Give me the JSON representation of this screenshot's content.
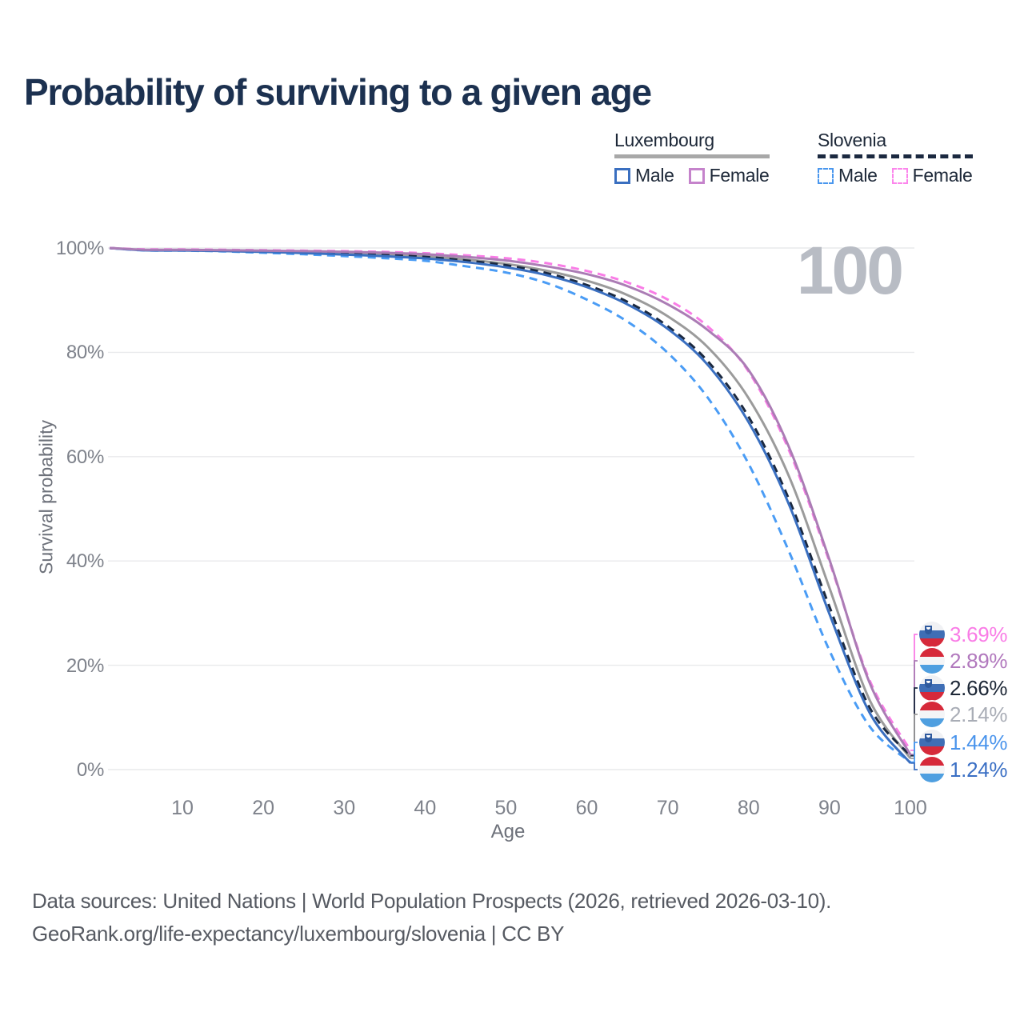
{
  "title": "Probability of surviving to a given age",
  "watermark": "100",
  "legend": {
    "groups": [
      {
        "label": "Luxembourg",
        "rule_style": "solid",
        "rule_color": "#a8a8a8",
        "items": [
          {
            "label": "Male",
            "color": "#3a6fc0",
            "dashed": false
          },
          {
            "label": "Female",
            "color": "#c583cb",
            "dashed": false
          }
        ]
      },
      {
        "label": "Slovenia",
        "rule_style": "dashed",
        "rule_color": "#1b2940",
        "items": [
          {
            "label": "Male",
            "color": "#4a97ee",
            "dashed": true
          },
          {
            "label": "Female",
            "color": "#fc86ec",
            "dashed": true
          }
        ]
      }
    ]
  },
  "axes": {
    "y_label": "Survival probability",
    "y_ticks": [
      {
        "label": "100%",
        "value": 100
      },
      {
        "label": "80%",
        "value": 80
      },
      {
        "label": "60%",
        "value": 60
      },
      {
        "label": "40%",
        "value": 40
      },
      {
        "label": "20%",
        "value": 20
      },
      {
        "label": "0%",
        "value": 0
      }
    ],
    "x_label": "Age",
    "x_ticks": [
      10,
      20,
      30,
      40,
      50,
      60,
      70,
      80,
      90,
      100
    ]
  },
  "flags": {
    "si": {
      "stripes": [
        "#f0f1f4",
        "#3f6eb5",
        "#d6293a"
      ],
      "emblem": "#2f5a9e"
    },
    "lu": {
      "stripes": [
        "#d6293a",
        "#f4f5f7",
        "#4f9fe0"
      ],
      "emblem": null
    }
  },
  "end_labels": [
    {
      "value": "3.69%",
      "country": "Slovenia",
      "flag": "si",
      "color": "#f97ce6"
    },
    {
      "value": "2.89%",
      "country": "Luxembourg",
      "flag": "lu",
      "color": "#b178bd"
    },
    {
      "value": "2.66%",
      "country": "Slovenia",
      "flag": "si",
      "color": "#1d2736"
    },
    {
      "value": "2.14%",
      "country": "Luxembourg",
      "flag": "lu",
      "color": "#a9adb6"
    },
    {
      "value": "1.44%",
      "country": "Slovenia",
      "flag": "si",
      "color": "#4a94ec"
    },
    {
      "value": "1.24%",
      "country": "Luxembourg",
      "flag": "lu",
      "color": "#3a6fc4"
    }
  ],
  "footer": {
    "line1": "Data sources: United Nations | World Population Prospects (2026, retrieved 2026-03-10).",
    "line2": "GeoRank.org/life-expectancy/luxembourg/slovenia | CC BY"
  },
  "chart_data": {
    "type": "line",
    "title": "Probability of surviving to a given age",
    "xlabel": "Age",
    "ylabel": "Survival probability",
    "x_range": [
      1,
      100
    ],
    "y_range_percent": [
      0,
      100
    ],
    "grid": "horizontal",
    "legend_position": "top-right",
    "x": [
      1,
      5,
      10,
      15,
      20,
      25,
      30,
      35,
      40,
      45,
      50,
      55,
      60,
      65,
      70,
      75,
      80,
      85,
      90,
      95,
      100
    ],
    "series": [
      {
        "id": "si_female",
        "name": "Slovenia Female",
        "country": "Slovenia",
        "sex": "Female",
        "color": "#f97ce6",
        "dashed": true,
        "end_value_percent": 3.69,
        "values": [
          100,
          99.75,
          99.72,
          99.66,
          99.58,
          99.5,
          99.4,
          99.25,
          99.0,
          98.6,
          98.05,
          97.1,
          95.6,
          93.4,
          90.1,
          84.9,
          76.3,
          61.2,
          39.8,
          17.0,
          3.69
        ]
      },
      {
        "id": "lu_female",
        "name": "Luxembourg Female",
        "country": "Luxembourg",
        "sex": "Female",
        "color": "#ab7cb5",
        "dashed": false,
        "end_value_percent": 2.89,
        "values": [
          100,
          99.68,
          99.64,
          99.58,
          99.5,
          99.4,
          99.28,
          99.1,
          98.8,
          98.3,
          97.6,
          96.5,
          95.0,
          92.7,
          89.2,
          84.2,
          76.6,
          61.8,
          40.2,
          16.5,
          2.89
        ]
      },
      {
        "id": "si_total",
        "name": "Slovenia",
        "country": "Slovenia",
        "sex": "Both",
        "color": "#1b2940",
        "dashed": true,
        "end_value_percent": 2.66,
        "values": [
          100,
          99.65,
          99.6,
          99.5,
          99.38,
          99.2,
          99.0,
          98.7,
          98.3,
          97.6,
          96.7,
          95.2,
          92.9,
          89.7,
          85.0,
          78.2,
          67.6,
          51.8,
          31.2,
          11.8,
          2.66
        ]
      },
      {
        "id": "lu_total",
        "name": "Luxembourg",
        "country": "Luxembourg",
        "sex": "Both",
        "color": "#9b9b9b",
        "dashed": false,
        "end_value_percent": 2.14,
        "values": [
          100,
          99.62,
          99.56,
          99.48,
          99.36,
          99.2,
          99.0,
          98.75,
          98.4,
          97.8,
          96.95,
          95.65,
          93.75,
          91.0,
          86.9,
          80.9,
          71.2,
          56.2,
          34.8,
          13.2,
          2.14
        ]
      },
      {
        "id": "si_male",
        "name": "Slovenia Male",
        "country": "Slovenia",
        "sex": "Male",
        "color": "#4a9cf5",
        "dashed": true,
        "end_value_percent": 1.44,
        "values": [
          100,
          99.55,
          99.5,
          99.36,
          99.1,
          98.8,
          98.45,
          98.05,
          97.55,
          96.5,
          95.3,
          93.3,
          90.1,
          85.9,
          79.9,
          71.2,
          58.6,
          41.8,
          22.8,
          8.2,
          1.44
        ]
      },
      {
        "id": "lu_male",
        "name": "Luxembourg Male",
        "country": "Luxembourg",
        "sex": "Male",
        "color": "#3a6fc0",
        "dashed": false,
        "end_value_percent": 1.24,
        "values": [
          100,
          99.58,
          99.52,
          99.42,
          99.25,
          99.02,
          98.75,
          98.42,
          98.0,
          97.3,
          96.3,
          94.8,
          92.5,
          89.2,
          84.5,
          77.5,
          66.6,
          50.8,
          29.8,
          10.8,
          1.24
        ]
      }
    ]
  },
  "layout_colors": {
    "grid": "#e9eaec",
    "title": "#1c3150",
    "axis_text": "#7e828b"
  }
}
